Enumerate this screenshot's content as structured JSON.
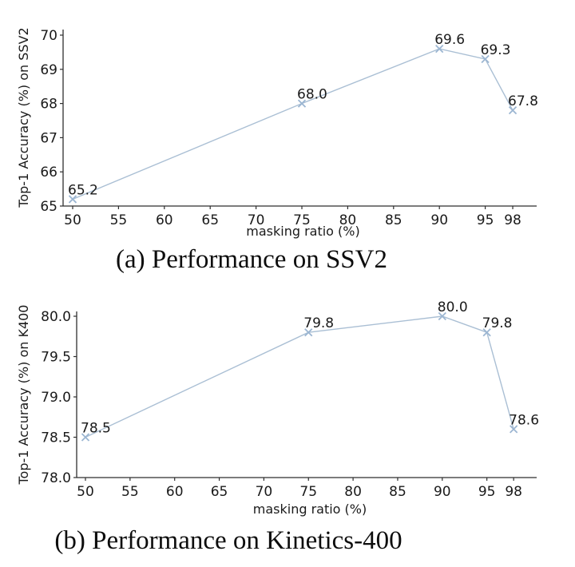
{
  "captions": {
    "a": "(a) Performance on SSV2",
    "b": "(b) Performance on Kinetics-400"
  },
  "style": {
    "background": "#ffffff",
    "spine_color": "#2f2f2f",
    "text_color": "#1a1a1a",
    "line_color": "#aabfd4",
    "marker_color": "#9cb6d2"
  },
  "chart_data": [
    {
      "id": "a",
      "type": "line",
      "title": "(a) Performance on SSV2",
      "xlabel": "masking ratio (%)",
      "ylabel": "Top-1 Accuracy (%) on SSV2",
      "x": [
        50,
        75,
        90,
        95,
        98
      ],
      "y": [
        65.2,
        68.0,
        69.6,
        69.3,
        67.8
      ],
      "point_labels": [
        "65.2",
        "68.0",
        "69.6",
        "69.3",
        "67.8"
      ],
      "xticks": [
        50,
        55,
        60,
        65,
        70,
        75,
        80,
        85,
        90,
        95,
        98
      ],
      "xtick_labels": [
        "50",
        "55",
        "60",
        "65",
        "70",
        "75",
        "80",
        "85",
        "90",
        "95",
        "98"
      ],
      "yticks": [
        65,
        66,
        67,
        68,
        69,
        70
      ],
      "ytick_labels": [
        "65",
        "66",
        "67",
        "68",
        "69",
        "70"
      ],
      "xlim": [
        48.9,
        100.6
      ],
      "ylim": [
        65.0,
        70.16
      ],
      "grid": false,
      "legend": null,
      "marker": "x"
    },
    {
      "id": "b",
      "type": "line",
      "title": "(b) Performance on Kinetics-400",
      "xlabel": "masking ratio (%)",
      "ylabel": "Top-1 Accuracy (%) on K400",
      "x": [
        50,
        75,
        90,
        95,
        98
      ],
      "y": [
        78.5,
        79.8,
        80.0,
        79.8,
        78.6
      ],
      "point_labels": [
        "78.5",
        "79.8",
        "80.0",
        "79.8",
        "78.6"
      ],
      "xticks": [
        50,
        55,
        60,
        65,
        70,
        75,
        80,
        85,
        90,
        95,
        98
      ],
      "xtick_labels": [
        "50",
        "55",
        "60",
        "65",
        "70",
        "75",
        "80",
        "85",
        "90",
        "95",
        "98"
      ],
      "yticks": [
        78.0,
        78.5,
        79.0,
        79.5,
        80.0
      ],
      "ytick_labels": [
        "78.0",
        "78.5",
        "79.0",
        "79.5",
        "80.0"
      ],
      "xlim": [
        49.0,
        100.6
      ],
      "ylim": [
        78.0,
        80.06
      ],
      "grid": false,
      "legend": null,
      "marker": "x"
    }
  ]
}
